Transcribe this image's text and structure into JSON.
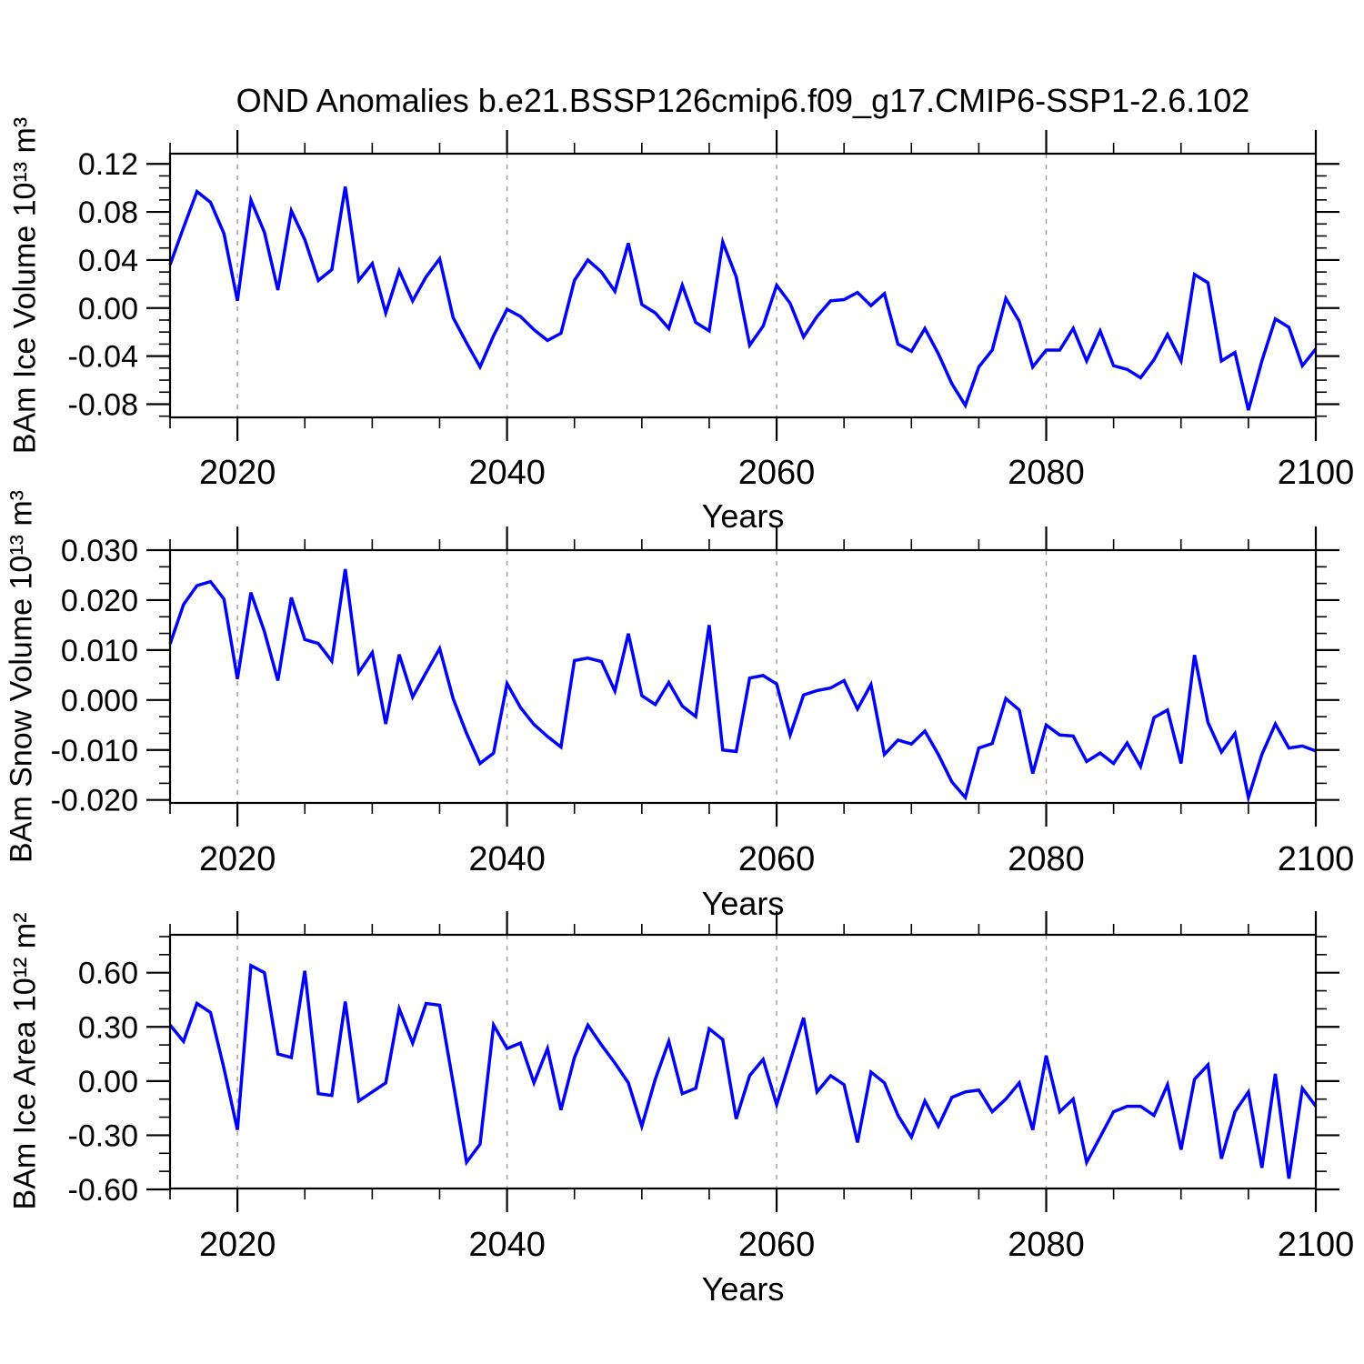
{
  "title": "OND Anomalies b.e21.BSSP126cmip6.f09_g17.CMIP6-SSP1-2.6.102",
  "chart_data": [
    {
      "type": "line",
      "name": "bam-ice-volume",
      "ylabel": "BAm Ice Volume 10¹³ m³",
      "xlabel": "Years",
      "line_color": "#0000ff",
      "grid_color": "#999999",
      "legend": "none",
      "grid": "dashed vertical at x major ticks except last",
      "xlim": [
        2015,
        2100
      ],
      "ylim": [
        -0.091,
        0.1285
      ],
      "x_major_ticks": [
        2020,
        2040,
        2060,
        2080,
        2100
      ],
      "x_tick_labels": [
        "2020",
        "2040",
        "2060",
        "2080",
        "2100"
      ],
      "x_minor_step": 5,
      "x_gridlines": [
        2020,
        2040,
        2060,
        2080
      ],
      "y_major_ticks": [
        0.12,
        0.08,
        0.04,
        0.0,
        -0.04,
        -0.08
      ],
      "y_tick_labels": [
        "0.12",
        "0.08",
        "0.04",
        "0.00",
        "-0.04",
        "-0.08"
      ],
      "y_minor_step": 0.01,
      "x_start": 2015,
      "x_step": 1,
      "values": [
        0.036,
        0.067,
        0.097,
        0.088,
        0.062,
        0.006,
        0.09,
        0.063,
        0.015,
        0.081,
        0.057,
        0.023,
        0.032,
        0.101,
        0.023,
        0.037,
        -0.004,
        0.031,
        0.006,
        0.026,
        0.041,
        -0.008,
        -0.029,
        -0.049,
        -0.023,
        -0.001,
        -0.007,
        -0.018,
        -0.027,
        -0.021,
        0.023,
        0.04,
        0.03,
        0.014,
        0.054,
        0.003,
        -0.004,
        -0.017,
        0.019,
        -0.012,
        -0.019,
        0.055,
        0.026,
        -0.031,
        -0.015,
        0.019,
        0.004,
        -0.024,
        -0.007,
        0.006,
        0.007,
        0.013,
        0.002,
        0.012,
        -0.03,
        -0.036,
        -0.017,
        -0.038,
        -0.063,
        -0.081,
        -0.049,
        -0.035,
        0.008,
        -0.011,
        -0.049,
        -0.035,
        -0.035,
        -0.017,
        -0.044,
        -0.019,
        -0.048,
        -0.051,
        -0.058,
        -0.043,
        -0.022,
        -0.044,
        0.028,
        0.021,
        -0.044,
        -0.037,
        -0.085,
        -0.044,
        -0.009,
        -0.016,
        -0.048,
        -0.034
      ]
    },
    {
      "type": "line",
      "name": "bam-snow-volume",
      "ylabel": "BAm Snow Volume 10¹³ m³",
      "xlabel": "Years",
      "line_color": "#0000ff",
      "grid_color": "#999999",
      "legend": "none",
      "grid": "dashed vertical at x major ticks except last",
      "xlim": [
        2015,
        2100
      ],
      "ylim": [
        -0.0206,
        0.03
      ],
      "x_major_ticks": [
        2020,
        2040,
        2060,
        2080,
        2100
      ],
      "x_tick_labels": [
        "2020",
        "2040",
        "2060",
        "2080",
        "2100"
      ],
      "x_minor_step": 5,
      "x_gridlines": [
        2020,
        2040,
        2060,
        2080
      ],
      "y_major_ticks": [
        0.03,
        0.02,
        0.01,
        0.0,
        -0.01,
        -0.02
      ],
      "y_tick_labels": [
        "0.030",
        "0.020",
        "0.010",
        "0.000",
        "-0.010",
        "-0.020"
      ],
      "y_minor_step": 0.0033333,
      "x_start": 2015,
      "x_step": 1,
      "values": [
        0.0112,
        0.0191,
        0.0229,
        0.0237,
        0.0202,
        0.0042,
        0.0215,
        0.0137,
        0.0039,
        0.0205,
        0.0121,
        0.0113,
        0.0078,
        0.0262,
        0.0055,
        0.0095,
        -0.0048,
        0.0091,
        0.0006,
        0.0055,
        0.0103,
        0.0003,
        -0.0067,
        -0.0127,
        -0.0106,
        0.0033,
        -0.0015,
        -0.0049,
        -0.0073,
        -0.0094,
        0.0079,
        0.0084,
        0.0077,
        0.0018,
        0.0133,
        0.0009,
        -0.0009,
        0.0035,
        -0.0012,
        -0.0033,
        0.015,
        -0.01,
        -0.0103,
        0.0044,
        0.0049,
        0.0032,
        -0.007,
        0.001,
        0.0019,
        0.0024,
        0.0039,
        -0.0018,
        0.0031,
        -0.0109,
        -0.008,
        -0.0088,
        -0.0062,
        -0.0109,
        -0.0164,
        -0.0195,
        -0.0096,
        -0.0087,
        0.0003,
        -0.002,
        -0.0147,
        -0.005,
        -0.007,
        -0.0072,
        -0.0123,
        -0.0106,
        -0.0127,
        -0.0086,
        -0.0133,
        -0.0035,
        -0.002,
        -0.0127,
        0.009,
        -0.0045,
        -0.0104,
        -0.0067,
        -0.0195,
        -0.0109,
        -0.0048,
        -0.0096,
        -0.0092,
        -0.0102
      ]
    },
    {
      "type": "line",
      "name": "bam-ice-area",
      "ylabel": "BAm Ice Area 10¹² m²",
      "xlabel": "Years",
      "line_color": "#0000ff",
      "grid_color": "#999999",
      "legend": "none",
      "grid": "dashed vertical at x major ticks except last",
      "xlim": [
        2015,
        2100
      ],
      "ylim": [
        -0.595,
        0.81
      ],
      "x_major_ticks": [
        2020,
        2040,
        2060,
        2080,
        2100
      ],
      "x_tick_labels": [
        "2020",
        "2040",
        "2060",
        "2080",
        "2100"
      ],
      "x_minor_step": 5,
      "x_gridlines": [
        2020,
        2040,
        2060,
        2080
      ],
      "y_major_ticks": [
        0.6,
        0.3,
        0.0,
        -0.3,
        -0.6
      ],
      "y_tick_labels": [
        "0.60",
        "0.30",
        "0.00",
        "-0.30",
        "-0.60"
      ],
      "y_minor_step": 0.1,
      "x_start": 2015,
      "x_step": 1,
      "values": [
        0.31,
        0.22,
        0.43,
        0.38,
        0.07,
        -0.27,
        0.64,
        0.6,
        0.15,
        0.13,
        0.61,
        -0.07,
        -0.08,
        0.44,
        -0.11,
        -0.06,
        -0.01,
        0.4,
        0.21,
        0.43,
        0.42,
        -0.01,
        -0.45,
        -0.35,
        0.31,
        0.18,
        0.21,
        -0.01,
        0.18,
        -0.16,
        0.13,
        0.31,
        0.2,
        0.1,
        -0.01,
        -0.25,
        0.01,
        0.22,
        -0.07,
        -0.04,
        0.29,
        0.23,
        -0.21,
        0.03,
        0.12,
        -0.13,
        0.11,
        0.35,
        -0.06,
        0.03,
        -0.02,
        -0.34,
        0.05,
        -0.01,
        -0.19,
        -0.31,
        -0.11,
        -0.25,
        -0.09,
        -0.06,
        -0.05,
        -0.17,
        -0.1,
        -0.01,
        -0.27,
        0.14,
        -0.17,
        -0.1,
        -0.45,
        -0.31,
        -0.17,
        -0.14,
        -0.14,
        -0.19,
        -0.02,
        -0.38,
        0.01,
        0.09,
        -0.43,
        -0.17,
        -0.06,
        -0.48,
        0.04,
        -0.54,
        -0.04,
        -0.14
      ]
    }
  ]
}
